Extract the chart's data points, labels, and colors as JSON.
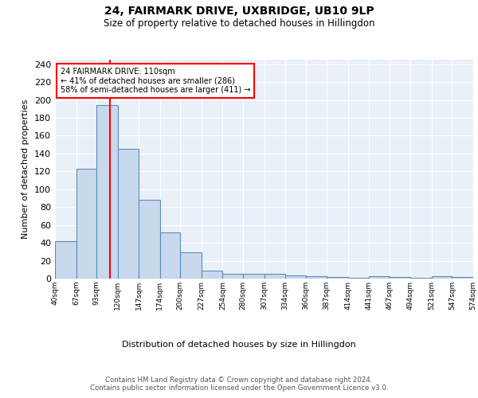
{
  "title1": "24, FAIRMARK DRIVE, UXBRIDGE, UB10 9LP",
  "title2": "Size of property relative to detached houses in Hillingdon",
  "xlabel": "Distribution of detached houses by size in Hillingdon",
  "ylabel": "Number of detached properties",
  "bin_edges": [
    40,
    67,
    93,
    120,
    147,
    174,
    200,
    227,
    254,
    280,
    307,
    334,
    360,
    387,
    414,
    441,
    467,
    494,
    521,
    547,
    574
  ],
  "bar_heights": [
    42,
    123,
    194,
    145,
    88,
    52,
    29,
    9,
    5,
    5,
    5,
    4,
    3,
    2,
    1,
    3,
    2,
    1,
    3,
    2
  ],
  "bar_color": "#c9d9ed",
  "bar_edge_color": "#5b8db8",
  "reference_line_x": 110,
  "annotation_text": "24 FAIRMARK DRIVE: 110sqm\n← 41% of detached houses are smaller (286)\n58% of semi-detached houses are larger (411) →",
  "annotation_box_color": "white",
  "annotation_box_edge_color": "red",
  "ref_line_color": "red",
  "bg_color": "#eaf0f8",
  "grid_color": "white",
  "tick_labels": [
    "40sqm",
    "67sqm",
    "93sqm",
    "120sqm",
    "147sqm",
    "174sqm",
    "200sqm",
    "227sqm",
    "254sqm",
    "280sqm",
    "307sqm",
    "334sqm",
    "360sqm",
    "387sqm",
    "414sqm",
    "441sqm",
    "467sqm",
    "494sqm",
    "521sqm",
    "547sqm",
    "574sqm"
  ],
  "footer_text": "Contains HM Land Registry data © Crown copyright and database right 2024.\nContains public sector information licensed under the Open Government Licence v3.0.",
  "ylim": [
    0,
    245
  ],
  "yticks": [
    0,
    20,
    40,
    60,
    80,
    100,
    120,
    140,
    160,
    180,
    200,
    220,
    240
  ]
}
